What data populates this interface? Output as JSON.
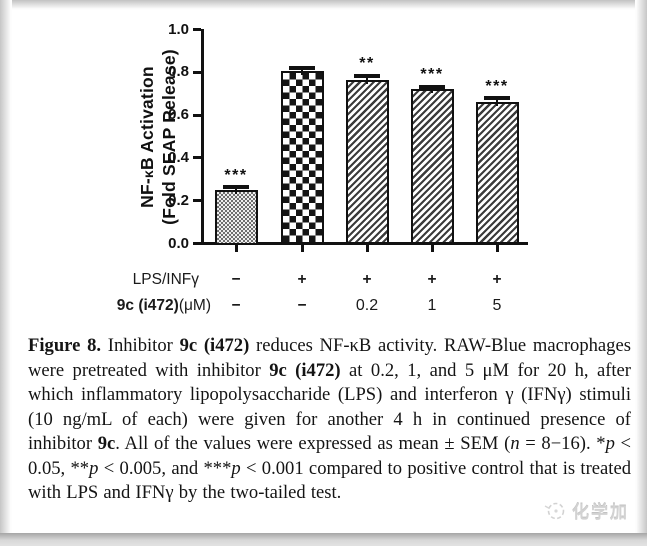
{
  "chart_data": {
    "type": "bar",
    "title": "",
    "ylabel_line1": "NF-κB Activation",
    "ylabel_line2": "(Fold SEAP Release)",
    "ylim": [
      0.0,
      1.0
    ],
    "ytick_step": 0.2,
    "yticks": [
      "0.0",
      "0.2",
      "0.4",
      "0.6",
      "0.8",
      "1.0"
    ],
    "grid": false,
    "legend": "none",
    "categories": [
      "untreated control",
      "LPS/INFγ only",
      "LPS/INFγ + 0.2 μM 9c",
      "LPS/INFγ + 1 μM 9c",
      "LPS/INFγ + 5 μM 9c"
    ],
    "values": [
      0.25,
      0.805,
      0.765,
      0.72,
      0.66
    ],
    "errors": [
      0.012,
      0.013,
      0.018,
      0.013,
      0.018
    ],
    "significance": [
      "***",
      "",
      "**",
      "***",
      "***"
    ],
    "patterns": [
      "fine-check",
      "checker",
      "hatch",
      "hatch",
      "hatch"
    ],
    "condition_rows": [
      {
        "label_bold": "",
        "label_regular": "LPS/INFγ",
        "values": [
          "−",
          "+",
          "+",
          "+",
          "+"
        ],
        "values_numeric": false
      },
      {
        "label_bold": "9c (i472)",
        "label_regular": "(μM)",
        "values": [
          "−",
          "−",
          "0.2",
          "1",
          "5"
        ],
        "values_numeric": true
      }
    ]
  },
  "caption": {
    "segments": [
      {
        "text": "Figure 8.",
        "style": "bold"
      },
      {
        "text": " Inhibitor ",
        "style": "normal"
      },
      {
        "text": "9c (i472)",
        "style": "bold"
      },
      {
        "text": " reduces NF-κB activity. RAW-Blue macrophages were pretreated with inhibitor ",
        "style": "normal"
      },
      {
        "text": "9c (i472)",
        "style": "bold"
      },
      {
        "text": " at 0.2, 1, and 5 μM for 20 h, after which inflammatory lipopolysaccharide (LPS) and interferon γ (IFNγ) stimuli (10 ng/mL of each) were given for another 4 h in continued presence of inhibitor ",
        "style": "normal"
      },
      {
        "text": "9c",
        "style": "bold"
      },
      {
        "text": ". All of the values were expressed as mean ± SEM (",
        "style": "normal"
      },
      {
        "text": "n",
        "style": "italic"
      },
      {
        "text": " = 8−16). *",
        "style": "normal"
      },
      {
        "text": "p",
        "style": "italic"
      },
      {
        "text": " < 0.05, **",
        "style": "normal"
      },
      {
        "text": "p",
        "style": "italic"
      },
      {
        "text": " < 0.005, and ***",
        "style": "normal"
      },
      {
        "text": "p",
        "style": "italic"
      },
      {
        "text": " < 0.001 compared to positive control that is treated with LPS and IFNγ by the two-tailed test.",
        "style": "normal"
      }
    ]
  },
  "watermark": {
    "text": "化学加"
  }
}
